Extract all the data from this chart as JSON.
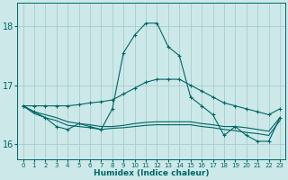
{
  "xlabel": "Humidex (Indice chaleur)",
  "background_color": "#cce8e8",
  "grid_color": "#aacccc",
  "line_color": "#006666",
  "xlim": [
    -0.5,
    23.5
  ],
  "ylim": [
    15.75,
    18.4
  ],
  "yticks": [
    16,
    17,
    18
  ],
  "xticks": [
    0,
    1,
    2,
    3,
    4,
    5,
    6,
    7,
    8,
    9,
    10,
    11,
    12,
    13,
    14,
    15,
    16,
    17,
    18,
    19,
    20,
    21,
    22,
    23
  ],
  "series": [
    {
      "x": [
        0,
        1,
        2,
        3,
        4,
        5,
        6,
        7,
        8,
        9,
        10,
        11,
        12,
        13,
        14,
        15,
        16,
        17,
        18,
        19,
        20,
        21,
        22,
        23
      ],
      "y": [
        16.65,
        16.55,
        16.45,
        16.3,
        16.25,
        16.35,
        16.3,
        16.25,
        16.6,
        17.55,
        17.85,
        18.05,
        18.05,
        17.65,
        17.5,
        16.8,
        16.65,
        16.5,
        16.15,
        16.3,
        16.15,
        16.05,
        16.05,
        16.45
      ],
      "linestyle": "-",
      "marker": "+"
    },
    {
      "x": [
        0,
        1,
        2,
        3,
        4,
        5,
        6,
        7,
        8,
        9,
        10,
        11,
        12,
        13,
        14,
        15,
        16,
        17,
        18,
        19,
        20,
        21,
        22,
        23
      ],
      "y": [
        16.65,
        16.65,
        16.65,
        16.65,
        16.65,
        16.67,
        16.7,
        16.72,
        16.75,
        16.85,
        16.95,
        17.05,
        17.1,
        17.1,
        17.1,
        17.0,
        16.9,
        16.8,
        16.7,
        16.65,
        16.6,
        16.55,
        16.5,
        16.6
      ],
      "linestyle": "-",
      "marker": "+"
    },
    {
      "x": [
        0,
        1,
        2,
        3,
        4,
        5,
        6,
        7,
        8,
        9,
        10,
        11,
        12,
        13,
        14,
        15,
        16,
        17,
        18,
        19,
        20,
        21,
        22,
        23
      ],
      "y": [
        16.65,
        16.55,
        16.5,
        16.45,
        16.38,
        16.35,
        16.33,
        16.3,
        16.3,
        16.32,
        16.35,
        16.37,
        16.38,
        16.38,
        16.38,
        16.38,
        16.35,
        16.33,
        16.3,
        16.3,
        16.28,
        16.25,
        16.22,
        16.45
      ],
      "linestyle": "-",
      "marker": null
    },
    {
      "x": [
        0,
        1,
        2,
        3,
        4,
        5,
        6,
        7,
        8,
        9,
        10,
        11,
        12,
        13,
        14,
        15,
        16,
        17,
        18,
        19,
        20,
        21,
        22,
        23
      ],
      "y": [
        16.65,
        16.52,
        16.45,
        16.4,
        16.32,
        16.3,
        16.28,
        16.25,
        16.27,
        16.28,
        16.3,
        16.32,
        16.33,
        16.33,
        16.33,
        16.33,
        16.3,
        16.28,
        16.25,
        16.23,
        16.2,
        16.18,
        16.15,
        16.4
      ],
      "linestyle": "-",
      "marker": null
    }
  ]
}
